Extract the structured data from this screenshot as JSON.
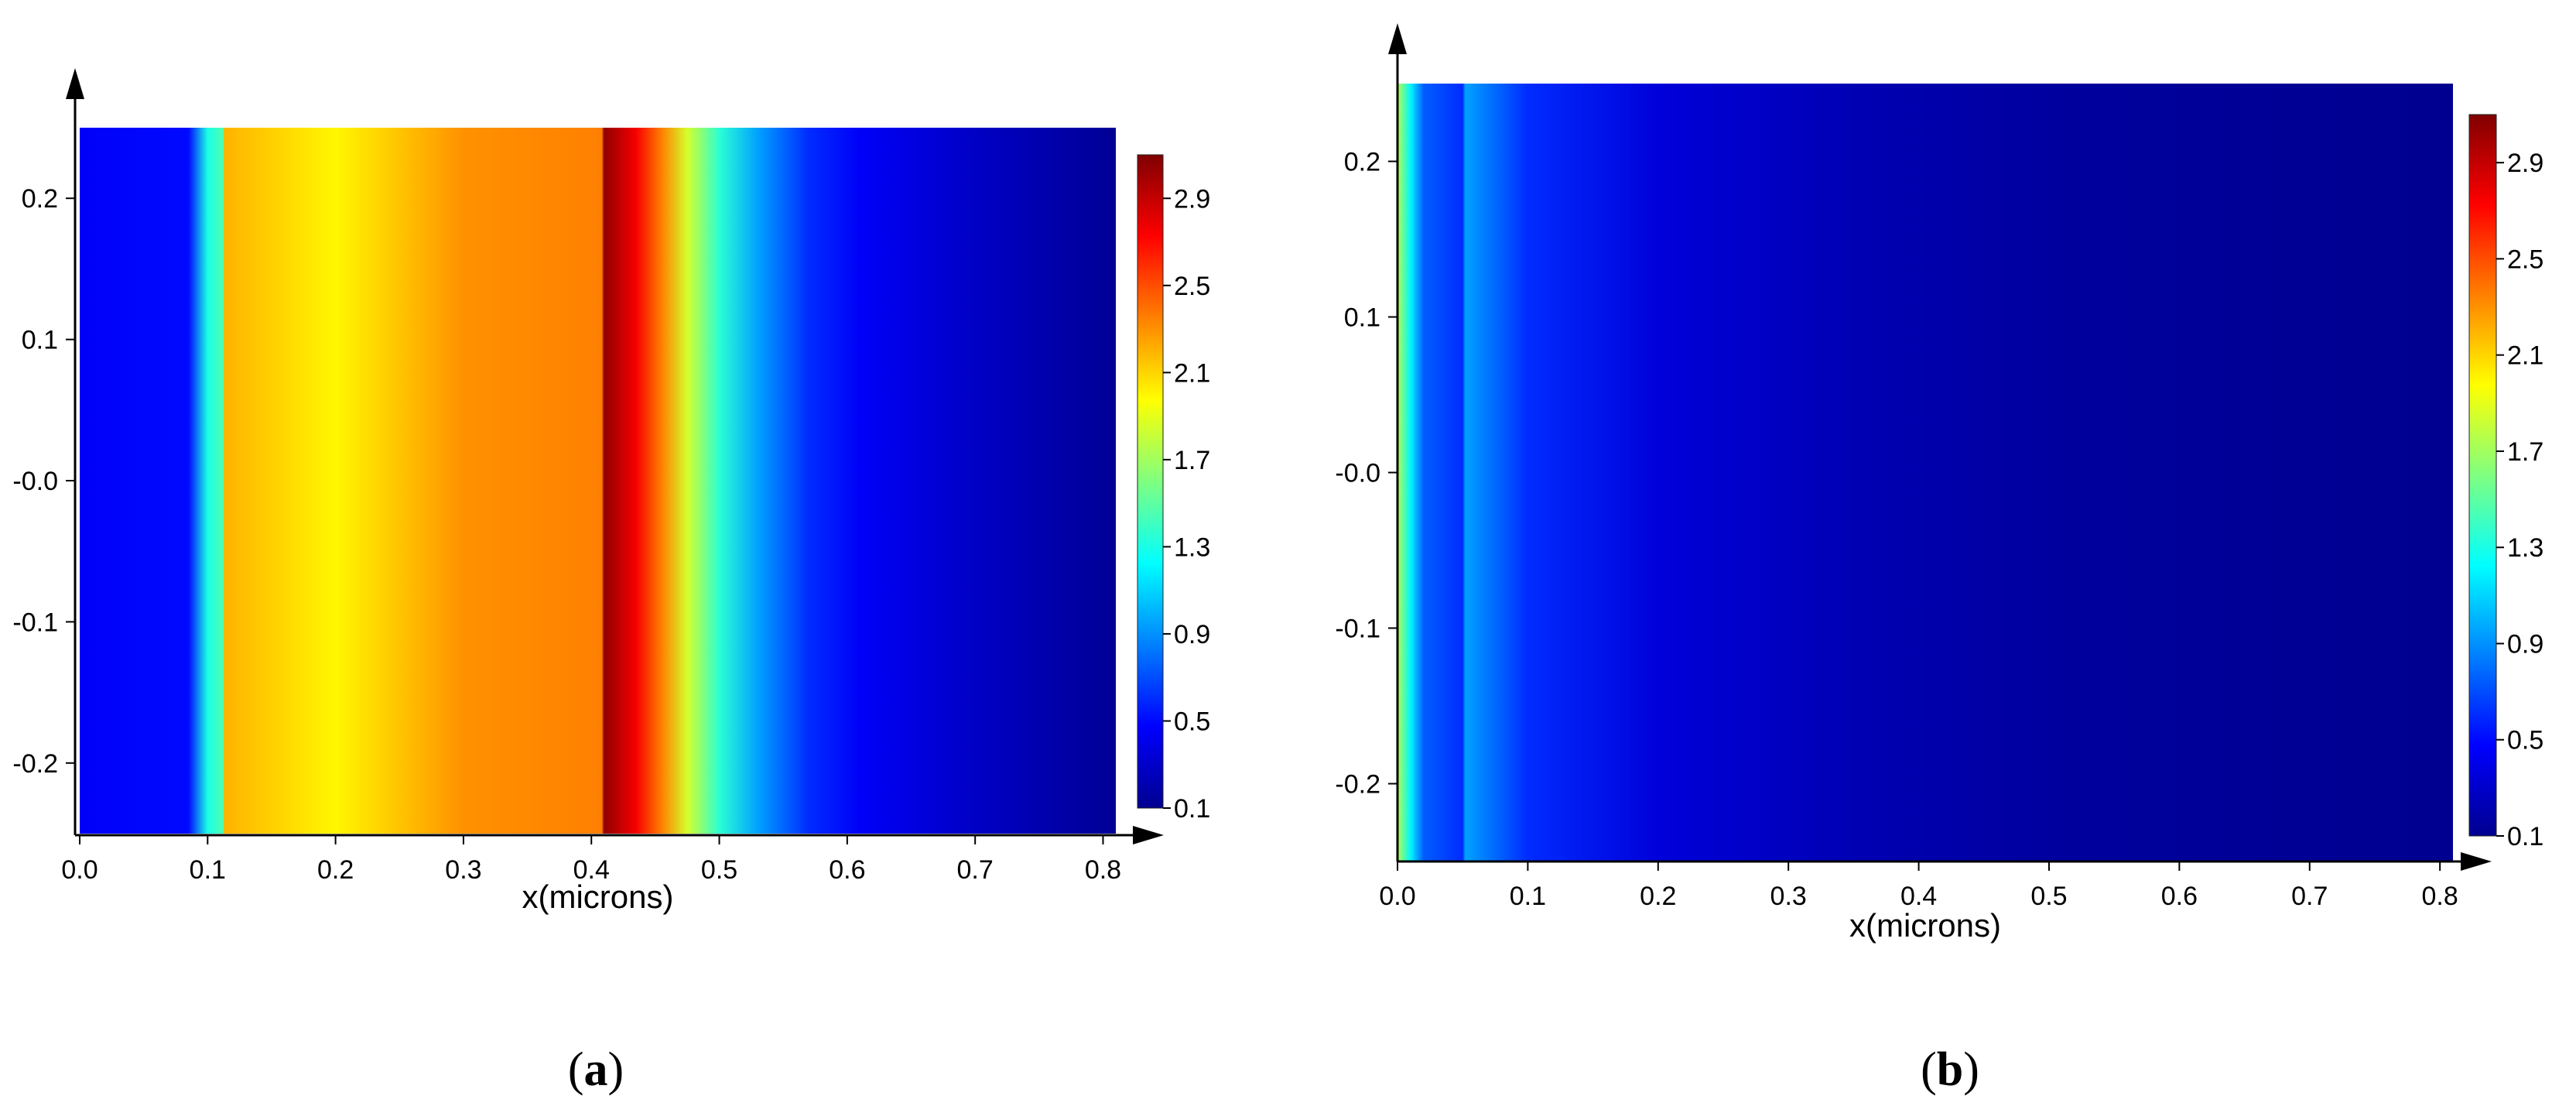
{
  "colormap": {
    "name": "jet",
    "stops": [
      "#00008f",
      "#0000ff",
      "#0080ff",
      "#00ffff",
      "#80ff80",
      "#ffff00",
      "#ff8000",
      "#ff0000",
      "#800000"
    ]
  },
  "chart_data": [
    {
      "type": "heatmap",
      "panel_label": "a",
      "xlabel": "x(microns)",
      "ylabel": "",
      "xlim": [
        0.0,
        0.81
      ],
      "ylim": [
        -0.25,
        0.25
      ],
      "x_ticks": [
        "0.0",
        "0.1",
        "0.2",
        "0.3",
        "0.4",
        "0.5",
        "0.6",
        "0.7",
        "0.8"
      ],
      "y_ticks": [
        "0.2",
        "0.1",
        "-0.0",
        "-0.1",
        "-0.2"
      ],
      "colorbar_range": [
        0.1,
        3.1
      ],
      "colorbar_ticks": [
        "2.9",
        "2.5",
        "2.1",
        "1.7",
        "1.3",
        "0.9",
        "0.5",
        "0.1"
      ],
      "profile_along_x": [
        {
          "x": 0.0,
          "value": 0.45
        },
        {
          "x": 0.085,
          "value": 0.5
        },
        {
          "x": 0.1,
          "value": 1.3
        },
        {
          "x": 0.112,
          "value": 1.45
        },
        {
          "x": 0.113,
          "value": 2.2
        },
        {
          "x": 0.2,
          "value": 2.0
        },
        {
          "x": 0.3,
          "value": 2.3
        },
        {
          "x": 0.408,
          "value": 2.35
        },
        {
          "x": 0.41,
          "value": 3.05
        },
        {
          "x": 0.435,
          "value": 2.75
        },
        {
          "x": 0.455,
          "value": 2.35
        },
        {
          "x": 0.475,
          "value": 1.85
        },
        {
          "x": 0.5,
          "value": 1.35
        },
        {
          "x": 0.53,
          "value": 0.95
        },
        {
          "x": 0.57,
          "value": 0.6
        },
        {
          "x": 0.61,
          "value": 0.45
        },
        {
          "x": 0.7,
          "value": 0.28
        },
        {
          "x": 0.81,
          "value": 0.12
        }
      ]
    },
    {
      "type": "heatmap",
      "panel_label": "b",
      "xlabel": "x(microns)",
      "ylabel": "",
      "xlim": [
        0.0,
        0.81
      ],
      "ylim": [
        -0.25,
        0.25
      ],
      "x_ticks": [
        "0.0",
        "0.1",
        "0.2",
        "0.3",
        "0.4",
        "0.5",
        "0.6",
        "0.7",
        "0.8"
      ],
      "y_ticks": [
        "0.2",
        "0.1",
        "-0.0",
        "-0.1",
        "-0.2"
      ],
      "colorbar_range": [
        0.1,
        3.1
      ],
      "colorbar_ticks": [
        "2.9",
        "2.5",
        "2.1",
        "1.7",
        "1.3",
        "0.9",
        "0.5",
        "0.1"
      ],
      "profile_along_x": [
        {
          "x": 0.0,
          "value": 1.75
        },
        {
          "x": 0.01,
          "value": 1.2
        },
        {
          "x": 0.02,
          "value": 0.75
        },
        {
          "x": 0.05,
          "value": 0.6
        },
        {
          "x": 0.052,
          "value": 0.95
        },
        {
          "x": 0.1,
          "value": 0.6
        },
        {
          "x": 0.2,
          "value": 0.35
        },
        {
          "x": 0.35,
          "value": 0.22
        },
        {
          "x": 0.5,
          "value": 0.15
        },
        {
          "x": 0.81,
          "value": 0.1
        }
      ]
    }
  ]
}
